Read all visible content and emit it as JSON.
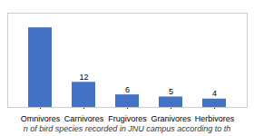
{
  "chart_data": {
    "type": "bar",
    "title": "n  of bird species recorded in JNU campus according to th",
    "categories": [
      "Omnivores",
      "Carnivores",
      "Frugivores",
      "Granivores",
      "Herbivores"
    ],
    "values": [
      38,
      12,
      6,
      5,
      4
    ],
    "value_labels": [
      null,
      "12",
      "6",
      "5",
      "4"
    ],
    "color": "#4472C4",
    "ylim": [
      0,
      45
    ],
    "tick_labels": "x",
    "grid": false
  }
}
